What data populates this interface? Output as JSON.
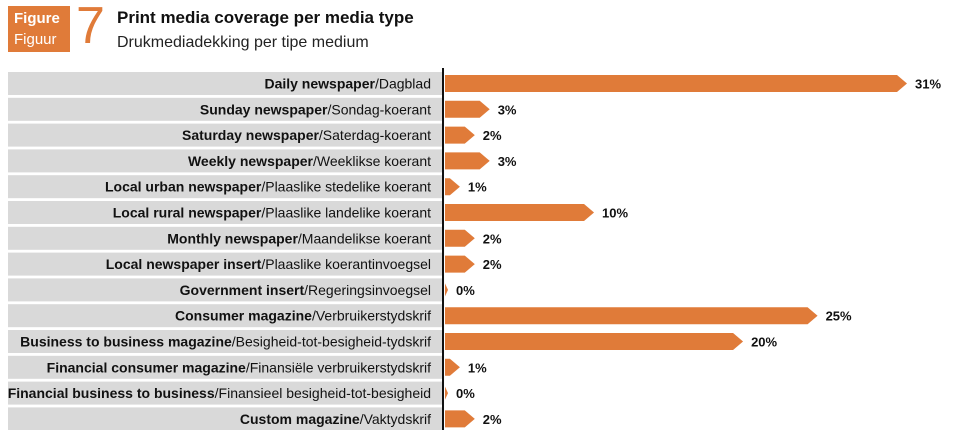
{
  "figure": {
    "label_en": "Figure",
    "label_af": "Figuur",
    "number": "7"
  },
  "title": "Print media coverage per media type",
  "subtitle": "Drukmediadekking per tipe medium",
  "colors": {
    "accent": "#e07b39",
    "bar": "#e07b39",
    "label_bg": "#d9d9d9",
    "axis": "#111111"
  },
  "chart_data": {
    "type": "bar",
    "orientation": "horizontal",
    "title": "Print media coverage per media type",
    "subtitle": "Drukmediadekking per tipe medium",
    "categories": [
      {
        "en": "Daily newspaper",
        "af": "Dagblad"
      },
      {
        "en": "Sunday newspaper",
        "af": "Sondag-koerant"
      },
      {
        "en": "Saturday newspaper",
        "af": "Saterdag-koerant"
      },
      {
        "en": "Weekly newspaper",
        "af": "Weeklikse koerant"
      },
      {
        "en": "Local urban newspaper",
        "af": "Plaaslike stedelike koerant"
      },
      {
        "en": "Local rural newspaper",
        "af": "Plaaslike landelike koerant"
      },
      {
        "en": "Monthly newspaper",
        "af": "Maandelikse koerant"
      },
      {
        "en": "Local newspaper insert",
        "af": "Plaaslike koerantinvoegsel"
      },
      {
        "en": "Government insert",
        "af": "Regeringsinvoegsel"
      },
      {
        "en": "Consumer magazine",
        "af": "Verbruikerstydskrif"
      },
      {
        "en": "Business to business magazine",
        "af": "Besigheid-tot-besigheid-tydskrif"
      },
      {
        "en": "Financial consumer magazine",
        "af": "Finansiële verbruikerstydskrif"
      },
      {
        "en": "Financial business to business",
        "af": "Finansieel besigheid-tot-besigheid"
      },
      {
        "en": "Custom magazine",
        "af": "Vaktydskrif"
      }
    ],
    "values": [
      31,
      3,
      2,
      3,
      1,
      10,
      2,
      2,
      0,
      25,
      20,
      1,
      0,
      2
    ],
    "value_labels": [
      "31%",
      "3%",
      "2%",
      "3%",
      "1%",
      "10%",
      "2%",
      "2%",
      "0%",
      "25%",
      "20%",
      "1%",
      "0%",
      "2%"
    ],
    "unit": "%",
    "xlim": [
      0,
      31
    ],
    "grid": false,
    "legend": "none"
  }
}
